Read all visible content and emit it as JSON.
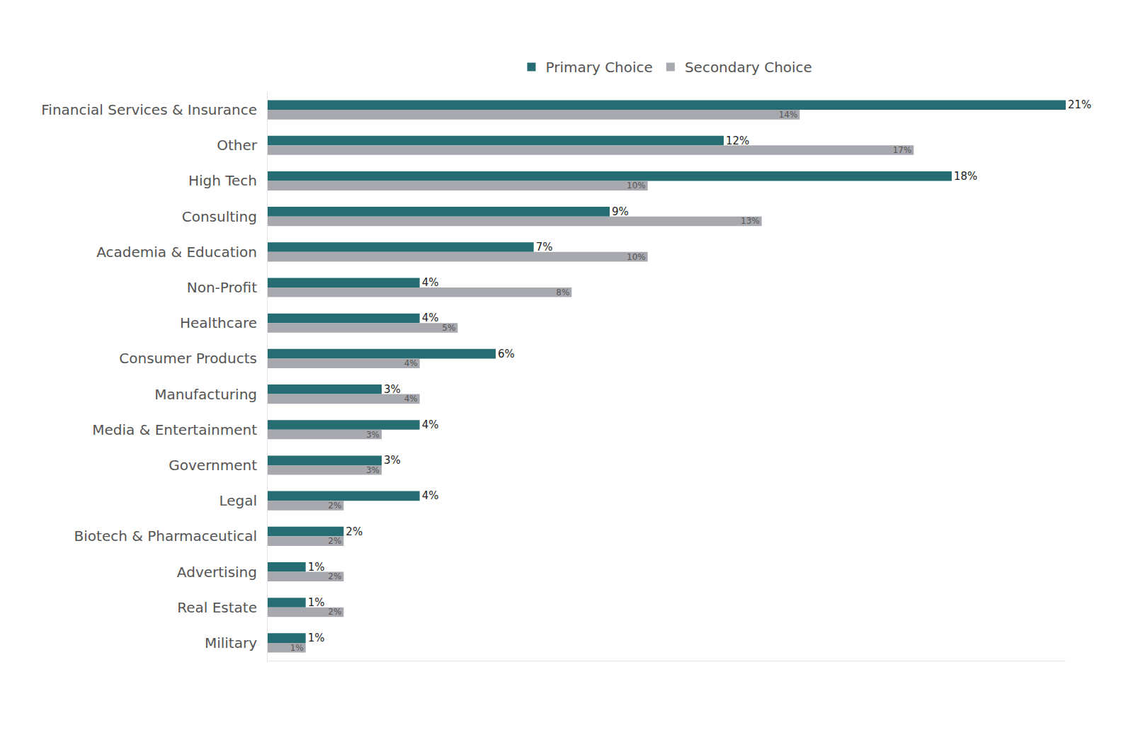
{
  "chart_data": {
    "type": "bar",
    "orientation": "horizontal",
    "categories": [
      "Financial Services & Insurance",
      "Other",
      "High Tech",
      "Consulting",
      "Academia & Education",
      "Non-Profit",
      "Healthcare",
      "Consumer Products",
      "Manufacturing",
      "Media & Entertainment",
      "Government",
      "Legal",
      "Biotech & Pharmaceutical",
      "Advertising",
      "Real Estate",
      "Military"
    ],
    "series": [
      {
        "name": "Primary Choice",
        "color": "#256d73",
        "values": [
          21,
          12,
          18,
          9,
          7,
          4,
          4,
          6,
          3,
          4,
          3,
          4,
          2,
          1,
          1,
          1
        ],
        "value_labels": [
          "21%",
          "12%",
          "18%",
          "9%",
          "7%",
          "4%",
          "4%",
          "6%",
          "3%",
          "4%",
          "3%",
          "4%",
          "2%",
          "1%",
          "1%",
          "1%"
        ]
      },
      {
        "name": "Secondary Choice",
        "color": "#a8a9ae",
        "values": [
          14,
          17,
          10,
          13,
          10,
          8,
          5,
          4,
          4,
          3,
          3,
          2,
          2,
          2,
          2,
          1
        ],
        "value_labels": [
          "14%",
          "17%",
          "10%",
          "13%",
          "10%",
          "8%",
          "5%",
          "4%",
          "4%",
          "3%",
          "3%",
          "2%",
          "2%",
          "2%",
          "2%",
          "1%"
        ]
      }
    ],
    "xlim": [
      0,
      21
    ],
    "xticks": [],
    "data_labels": true,
    "tick_labels": "y",
    "legend": "top",
    "grid": false
  }
}
